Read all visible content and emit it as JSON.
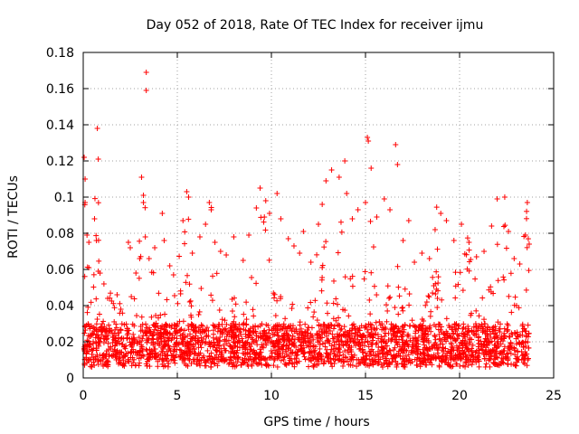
{
  "chart_data": {
    "type": "scatter",
    "title": "Day 052 of 2018, Rate Of TEC Index for receiver ijmu",
    "xlabel": "GPS time / hours",
    "ylabel": "ROTI / TECUs",
    "xlim": [
      0,
      25
    ],
    "ylim": [
      0,
      0.18
    ],
    "x_ticks": [
      "0",
      "5",
      "10",
      "15",
      "20",
      "25"
    ],
    "y_ticks": [
      "0",
      "0.02",
      "0.04",
      "0.06",
      "0.08",
      "0.1",
      "0.12",
      "0.14",
      "0.16",
      "0.18"
    ],
    "grid": true,
    "marker": "+",
    "marker_color": "#ff0000",
    "series": [
      {
        "name": "ROTI",
        "points": [
          [
            0.05,
            0.122
          ],
          [
            0.1,
            0.11
          ],
          [
            0.1,
            0.097
          ],
          [
            0.2,
            0.079
          ],
          [
            0.3,
            0.075
          ],
          [
            0.3,
            0.061
          ],
          [
            0.6,
            0.088
          ],
          [
            0.7,
            0.076
          ],
          [
            0.75,
            0.138
          ],
          [
            0.8,
            0.121
          ],
          [
            0.8,
            0.059
          ],
          [
            1.1,
            0.052
          ],
          [
            1.3,
            0.044
          ],
          [
            1.8,
            0.046
          ],
          [
            2.0,
            0.038
          ],
          [
            2.4,
            0.075
          ],
          [
            2.5,
            0.072
          ],
          [
            2.8,
            0.058
          ],
          [
            3.0,
            0.066
          ],
          [
            3.1,
            0.111
          ],
          [
            3.2,
            0.101
          ],
          [
            3.2,
            0.097
          ],
          [
            3.3,
            0.078
          ],
          [
            3.35,
            0.169
          ],
          [
            3.35,
            0.159
          ],
          [
            3.5,
            0.066
          ],
          [
            3.8,
            0.072
          ],
          [
            4.2,
            0.091
          ],
          [
            4.3,
            0.076
          ],
          [
            4.6,
            0.062
          ],
          [
            4.8,
            0.057
          ],
          [
            5.3,
            0.087
          ],
          [
            5.5,
            0.103
          ],
          [
            5.6,
            0.1
          ],
          [
            5.8,
            0.069
          ],
          [
            6.2,
            0.078
          ],
          [
            6.5,
            0.085
          ],
          [
            6.7,
            0.097
          ],
          [
            6.8,
            0.093
          ],
          [
            7.0,
            0.075
          ],
          [
            7.3,
            0.07
          ],
          [
            7.6,
            0.068
          ],
          [
            8.0,
            0.078
          ],
          [
            8.5,
            0.065
          ],
          [
            8.8,
            0.079
          ],
          [
            9.2,
            0.094
          ],
          [
            9.4,
            0.105
          ],
          [
            9.7,
            0.098
          ],
          [
            9.9,
            0.091
          ],
          [
            10.3,
            0.102
          ],
          [
            10.5,
            0.088
          ],
          [
            10.9,
            0.077
          ],
          [
            11.2,
            0.073
          ],
          [
            11.5,
            0.069
          ],
          [
            11.7,
            0.081
          ],
          [
            12.1,
            0.064
          ],
          [
            12.5,
            0.085
          ],
          [
            12.7,
            0.096
          ],
          [
            12.9,
            0.109
          ],
          [
            13.2,
            0.115
          ],
          [
            13.6,
            0.111
          ],
          [
            13.9,
            0.12
          ],
          [
            14.0,
            0.102
          ],
          [
            14.3,
            0.088
          ],
          [
            14.6,
            0.093
          ],
          [
            15.0,
            0.097
          ],
          [
            15.1,
            0.133
          ],
          [
            15.15,
            0.131
          ],
          [
            15.3,
            0.116
          ],
          [
            15.6,
            0.089
          ],
          [
            16.0,
            0.099
          ],
          [
            16.3,
            0.093
          ],
          [
            16.6,
            0.129
          ],
          [
            16.7,
            0.118
          ],
          [
            17.0,
            0.076
          ],
          [
            17.3,
            0.087
          ],
          [
            17.6,
            0.064
          ],
          [
            18.0,
            0.069
          ],
          [
            18.4,
            0.066
          ],
          [
            18.7,
            0.082
          ],
          [
            19.0,
            0.091
          ],
          [
            19.3,
            0.087
          ],
          [
            19.7,
            0.076
          ],
          [
            20.1,
            0.085
          ],
          [
            20.5,
            0.075
          ],
          [
            20.9,
            0.067
          ],
          [
            21.3,
            0.07
          ],
          [
            21.7,
            0.084
          ],
          [
            22.0,
            0.099
          ],
          [
            22.4,
            0.1
          ],
          [
            22.6,
            0.081
          ],
          [
            22.9,
            0.066
          ],
          [
            23.2,
            0.063
          ],
          [
            23.5,
            0.079
          ],
          [
            23.6,
            0.097
          ],
          [
            23.7,
            0.074
          ]
        ]
      }
    ]
  }
}
